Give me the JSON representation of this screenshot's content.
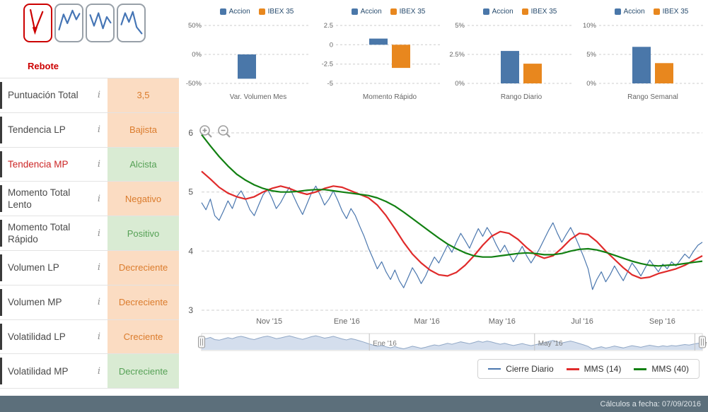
{
  "ui": {
    "info_glyph": "i"
  },
  "pattern_selector": {
    "label": "Rebote",
    "patterns": [
      {
        "name": "rebote",
        "selected": true
      },
      {
        "name": "pattern-2",
        "selected": false
      },
      {
        "name": "pattern-3",
        "selected": false
      },
      {
        "name": "pattern-4",
        "selected": false
      }
    ]
  },
  "indicators": [
    {
      "label": "Puntuación Total",
      "value": "3,5",
      "tone": "orange",
      "label_red": false
    },
    {
      "label": "Tendencia LP",
      "value": "Bajista",
      "tone": "orange",
      "label_red": false
    },
    {
      "label": "Tendencia MP",
      "value": "Alcista",
      "tone": "green",
      "label_red": true
    },
    {
      "label": "Momento Total Lento",
      "value": "Negativo",
      "tone": "orange",
      "label_red": false
    },
    {
      "label": "Momento Total Rápido",
      "value": "Positivo",
      "tone": "green",
      "label_red": false
    },
    {
      "label": "Volumen LP",
      "value": "Decreciente",
      "tone": "orange",
      "label_red": false
    },
    {
      "label": "Volumen MP",
      "value": "Decreciente",
      "tone": "orange",
      "label_red": false
    },
    {
      "label": "Volatilidad LP",
      "value": "Creciente",
      "tone": "orange",
      "label_red": false
    },
    {
      "label": "Volatilidad MP",
      "value": "Decreciente",
      "tone": "green",
      "label_red": false
    }
  ],
  "colors": {
    "accion_bar": "#4A77A9",
    "ibex_bar": "#E8871E",
    "close_line": "#4B77AE",
    "mms14_line": "#E02B2B",
    "mms40_line": "#128012",
    "orange_bg": "#FBDCC2",
    "orange_text": "#DB7C2D",
    "green_bg": "#D9EBD3",
    "green_text": "#56A156",
    "footer_bg": "#5C6F7B",
    "navigator_fill": "#C9D6E9"
  },
  "chart_data": [
    {
      "type": "bar",
      "title": "Var. Volumen Mes",
      "ylim": [
        -50,
        50
      ],
      "ticks": [
        {
          "v": 50,
          "t": "50%"
        },
        {
          "v": 0,
          "t": "0%"
        },
        {
          "v": -50,
          "t": "-50%"
        }
      ],
      "series": [
        {
          "name": "Accion",
          "color": "#4A77A9",
          "value": -42
        },
        {
          "name": "IBEX 35",
          "color": "#E8871E",
          "value": 0
        }
      ]
    },
    {
      "type": "bar",
      "title": "Momento Rápido",
      "ylim": [
        -5,
        2.5
      ],
      "ticks": [
        {
          "v": 2.5,
          "t": "2.5"
        },
        {
          "v": 0,
          "t": "0"
        },
        {
          "v": -2.5,
          "t": "-2.5"
        },
        {
          "v": -5,
          "t": "-5"
        }
      ],
      "series": [
        {
          "name": "Accion",
          "color": "#4A77A9",
          "value": 0.8
        },
        {
          "name": "IBEX 35",
          "color": "#E8871E",
          "value": -3.0
        }
      ]
    },
    {
      "type": "bar",
      "title": "Rango Diario",
      "ylim": [
        0,
        5
      ],
      "ticks": [
        {
          "v": 5,
          "t": "5%"
        },
        {
          "v": 2.5,
          "t": "2.5%"
        },
        {
          "v": 0,
          "t": "0%"
        }
      ],
      "series": [
        {
          "name": "Accion",
          "color": "#4A77A9",
          "value": 2.8
        },
        {
          "name": "IBEX 35",
          "color": "#E8871E",
          "value": 1.7
        }
      ]
    },
    {
      "type": "bar",
      "title": "Rango Semanal",
      "ylim": [
        0,
        10
      ],
      "ticks": [
        {
          "v": 10,
          "t": "10%"
        },
        {
          "v": 5,
          "t": "5%"
        },
        {
          "v": 0,
          "t": "0%"
        }
      ],
      "series": [
        {
          "name": "Accion",
          "color": "#4A77A9",
          "value": 6.3
        },
        {
          "name": "IBEX 35",
          "color": "#E8871E",
          "value": 3.5
        }
      ]
    },
    {
      "type": "line",
      "ylim": [
        2.85,
        6.25
      ],
      "yticks": [
        {
          "v": 6,
          "t": "6"
        },
        {
          "v": 5,
          "t": "5"
        },
        {
          "v": 4,
          "t": "4"
        },
        {
          "v": 3,
          "t": "3"
        }
      ],
      "xticks": [
        {
          "f": 0.135,
          "t": "Nov '15"
        },
        {
          "f": 0.29,
          "t": "Ene '16"
        },
        {
          "f": 0.45,
          "t": "Mar '16"
        },
        {
          "f": 0.6,
          "t": "May '16"
        },
        {
          "f": 0.76,
          "t": "Jul '16"
        },
        {
          "f": 0.92,
          "t": "Sep '16"
        }
      ],
      "series": [
        {
          "name": "Cierre Diario",
          "color": "#4B77AE",
          "width": 1.2,
          "values": [
            4.82,
            4.7,
            4.88,
            4.6,
            4.52,
            4.68,
            4.85,
            4.72,
            4.92,
            5.02,
            4.88,
            4.7,
            4.6,
            4.78,
            4.95,
            5.05,
            4.9,
            4.72,
            4.82,
            4.96,
            5.08,
            4.92,
            4.76,
            4.62,
            4.8,
            4.98,
            5.1,
            4.95,
            4.78,
            4.88,
            5.02,
            4.86,
            4.68,
            4.55,
            4.72,
            4.6,
            4.42,
            4.25,
            4.05,
            3.88,
            3.7,
            3.82,
            3.65,
            3.52,
            3.68,
            3.5,
            3.38,
            3.55,
            3.72,
            3.6,
            3.45,
            3.58,
            3.75,
            3.9,
            3.8,
            3.95,
            4.1,
            3.98,
            4.15,
            4.3,
            4.18,
            4.05,
            4.22,
            4.38,
            4.25,
            4.4,
            4.28,
            4.12,
            3.98,
            4.1,
            3.95,
            3.82,
            3.95,
            4.08,
            3.92,
            3.8,
            3.92,
            4.05,
            4.2,
            4.35,
            4.48,
            4.3,
            4.15,
            4.28,
            4.4,
            4.25,
            4.08,
            3.9,
            3.7,
            3.35,
            3.52,
            3.65,
            3.48,
            3.6,
            3.75,
            3.62,
            3.5,
            3.65,
            3.8,
            3.7,
            3.58,
            3.72,
            3.85,
            3.75,
            3.65,
            3.78,
            3.7,
            3.82,
            3.75,
            3.85,
            3.95,
            3.88,
            4.0,
            4.1,
            4.15
          ]
        },
        {
          "name": "MMS (14)",
          "color": "#E02B2B",
          "width": 2.2,
          "values": [
            5.35,
            5.22,
            5.08,
            4.98,
            4.92,
            4.88,
            4.92,
            5.0,
            5.06,
            5.1,
            5.06,
            5.0,
            4.96,
            5.0,
            5.06,
            5.1,
            5.08,
            5.02,
            4.96,
            4.9,
            4.78,
            4.6,
            4.38,
            4.15,
            3.95,
            3.8,
            3.68,
            3.6,
            3.58,
            3.64,
            3.76,
            3.92,
            4.1,
            4.25,
            4.33,
            4.3,
            4.2,
            4.06,
            3.94,
            3.88,
            3.92,
            4.05,
            4.2,
            4.3,
            4.28,
            4.16,
            4.0,
            3.86,
            3.72,
            3.6,
            3.54,
            3.56,
            3.62,
            3.66,
            3.7,
            3.76,
            3.84,
            3.92
          ]
        },
        {
          "name": "MMS (40)",
          "color": "#128012",
          "width": 2.2,
          "values": [
            5.97,
            5.78,
            5.6,
            5.44,
            5.3,
            5.2,
            5.12,
            5.06,
            5.02,
            5.0,
            5.0,
            5.01,
            5.03,
            5.04,
            5.04,
            5.02,
            5.0,
            4.98,
            4.96,
            4.94,
            4.9,
            4.84,
            4.76,
            4.66,
            4.55,
            4.44,
            4.33,
            4.22,
            4.12,
            4.04,
            3.97,
            3.92,
            3.9,
            3.9,
            3.92,
            3.94,
            3.96,
            3.97,
            3.96,
            3.94,
            3.94,
            3.96,
            4.0,
            4.03,
            4.04,
            4.02,
            3.98,
            3.93,
            3.88,
            3.83,
            3.79,
            3.76,
            3.75,
            3.76,
            3.77,
            3.79,
            3.81,
            3.83
          ]
        }
      ],
      "navigator": {
        "labels": [
          {
            "f": 0.335,
            "t": "Ene '16"
          },
          {
            "f": 0.665,
            "t": "May '16"
          },
          {
            "f": 0.985,
            "t": "Sep '16"
          }
        ]
      }
    }
  ],
  "footer": {
    "text": "Cálculos a fecha: 07/09/2016"
  }
}
